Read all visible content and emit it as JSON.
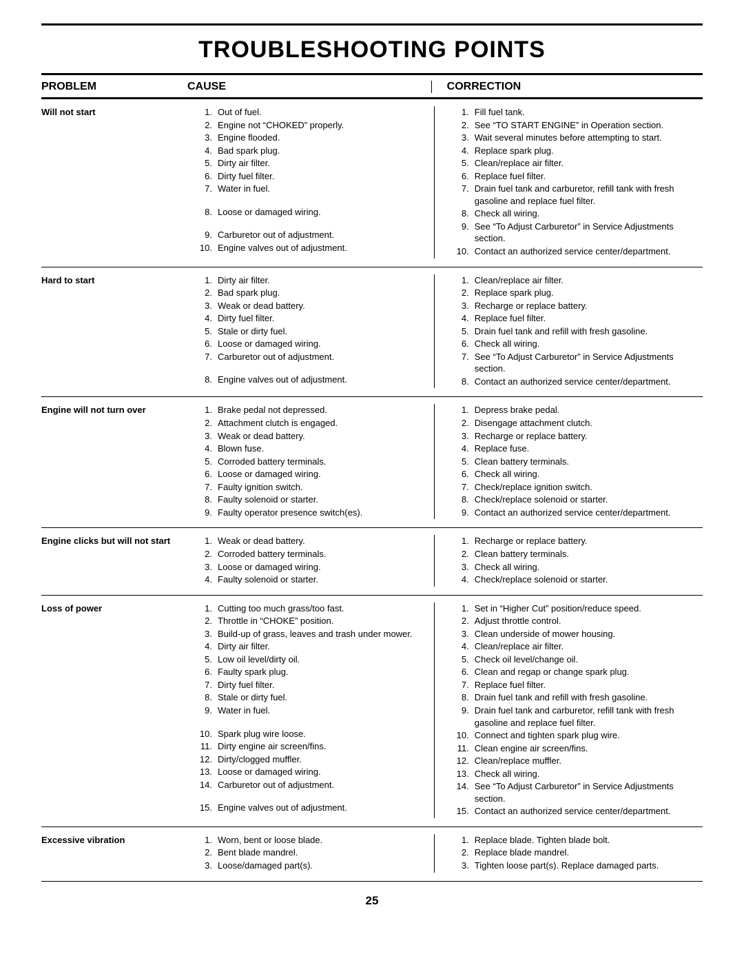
{
  "title": "TROUBLESHOOTING POINTS",
  "headers": {
    "problem": "PROBLEM",
    "cause": "CAUSE",
    "correction": "CORRECTION"
  },
  "page_number": "25",
  "sections": [
    {
      "problem": "Will not start",
      "causes": [
        "Out of fuel.",
        "Engine not “CHOKED” properly.",
        "Engine flooded.",
        "Bad spark plug.",
        "Dirty air filter.",
        "Dirty fuel filter.",
        "Water in fuel.",
        "Loose or damaged wiring.",
        "Carburetor out of adjustment.",
        "Engine valves out of adjustment."
      ],
      "cause_gaps": [
        7,
        8
      ],
      "corrections": [
        "Fill fuel tank.",
        "See “TO START ENGINE” in Operation section.",
        "Wait several minutes before attempting to start.",
        "Replace spark plug.",
        "Clean/replace air filter.",
        "Replace fuel filter.",
        "Drain fuel tank and carburetor, refill tank with fresh gasoline and replace fuel filter.",
        "Check all wiring.",
        "See “To Adjust Carburetor” in Service Adjustments section.",
        "Contact an authorized service center/department."
      ]
    },
    {
      "problem": "Hard to start",
      "causes": [
        "Dirty air filter.",
        "Bad spark plug.",
        "Weak or dead battery.",
        "Dirty fuel filter.",
        "Stale or dirty fuel.",
        "Loose or damaged wiring.",
        "Carburetor out of adjustment.",
        "Engine valves out of adjustment."
      ],
      "cause_gaps": [
        7
      ],
      "corrections": [
        "Clean/replace air filter.",
        "Replace spark plug.",
        "Recharge or replace battery.",
        "Replace fuel filter.",
        "Drain fuel tank and refill with fresh gasoline.",
        "Check all wiring.",
        "See “To Adjust Carburetor” in Service Adjustments section.",
        "Contact an authorized service center/department."
      ]
    },
    {
      "problem": "Engine will not turn over",
      "causes": [
        "Brake pedal not depressed.",
        "Attachment clutch is engaged.",
        "Weak or dead battery.",
        "Blown fuse.",
        "Corroded battery terminals.",
        "Loose or damaged wiring.",
        "Faulty ignition switch.",
        "Faulty solenoid or starter.",
        "Faulty operator presence switch(es)."
      ],
      "corrections": [
        "Depress brake pedal.",
        "Disengage attachment clutch.",
        "Recharge or replace battery.",
        "Replace fuse.",
        "Clean battery terminals.",
        "Check all wiring.",
        "Check/replace ignition switch.",
        "Check/replace solenoid or starter.",
        "Contact an authorized service center/department."
      ]
    },
    {
      "problem": "Engine clicks but will not start",
      "causes": [
        "Weak or dead battery.",
        "Corroded battery terminals.",
        "Loose or damaged wiring.",
        "Faulty solenoid or starter."
      ],
      "corrections": [
        "Recharge or replace battery.",
        "Clean battery terminals.",
        "Check all wiring.",
        "Check/replace solenoid or starter."
      ]
    },
    {
      "problem": "Loss of power",
      "causes": [
        "Cutting too much grass/too fast.",
        "Throttle in “CHOKE” position.",
        "Build-up of grass, leaves and trash under mower.",
        "Dirty air filter.",
        "Low oil level/dirty oil.",
        "Faulty spark plug.",
        "Dirty fuel filter.",
        "Stale or dirty fuel.",
        "Water in fuel.",
        "Spark plug wire loose.",
        "Dirty engine air screen/fins.",
        "Dirty/clogged muffler.",
        "Loose or damaged wiring.",
        "Carburetor out of adjustment.",
        "Engine valves out of adjustment."
      ],
      "cause_gaps": [
        9,
        14
      ],
      "corrections": [
        "Set in “Higher Cut” position/reduce speed.",
        "Adjust throttle control.",
        "Clean underside of mower housing.",
        "Clean/replace air filter.",
        "Check oil level/change oil.",
        "Clean and regap or change spark plug.",
        "Replace fuel filter.",
        "Drain fuel tank and refill with fresh gasoline.",
        "Drain fuel tank and carburetor, refill tank with fresh gasoline and replace fuel filter.",
        "Connect and tighten spark plug wire.",
        "Clean engine air screen/fins.",
        "Clean/replace muffler.",
        "Check all wiring.",
        "See “To Adjust Carburetor” in Service Adjustments section.",
        "Contact an authorized service center/department."
      ]
    },
    {
      "problem": "Excessive vibration",
      "causes": [
        "Worn, bent or loose blade.",
        "Bent blade mandrel.",
        "Loose/damaged part(s)."
      ],
      "corrections": [
        "Replace blade.  Tighten blade bolt.",
        "Replace blade mandrel.",
        "Tighten loose part(s).  Replace damaged parts."
      ]
    }
  ]
}
